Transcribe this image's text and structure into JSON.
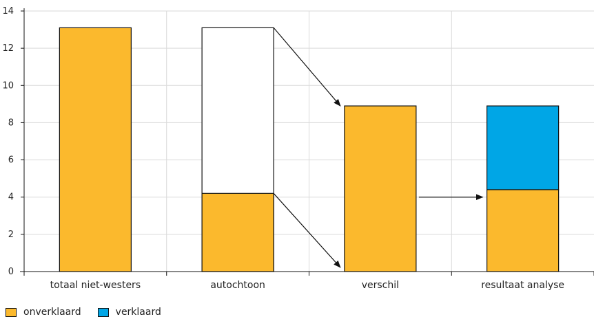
{
  "chart_data": {
    "type": "bar",
    "categories": [
      "totaal niet-westers",
      "autochtoon",
      "verschil",
      "resultaat analyse"
    ],
    "series": [
      {
        "name": "onverklaard",
        "values": [
          13.1,
          4.2,
          8.9,
          4.4
        ]
      },
      {
        "name": "verklaard",
        "values": [
          0,
          0,
          0,
          4.5
        ]
      }
    ],
    "outline_totals": [
      null,
      13.1,
      null,
      null
    ],
    "ylim": [
      0,
      14
    ],
    "yticks": [
      0,
      2,
      4,
      6,
      8,
      10,
      12,
      14
    ],
    "grid": true,
    "legend_position": "bottom-left",
    "colors": {
      "onverklaard": "#fbb92d",
      "verklaard": "#00a6e6",
      "outline": "#111111",
      "grid": "#d9d9d9"
    }
  },
  "legend": {
    "onverklaard": "onverklaard",
    "verklaard": "verklaard"
  }
}
